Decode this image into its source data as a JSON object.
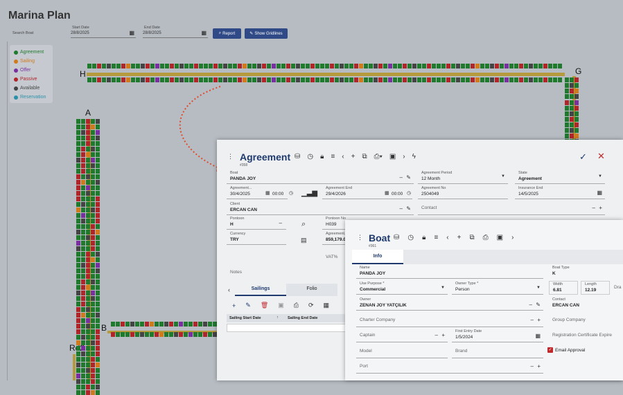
{
  "marina": {
    "title": "Marina Plan",
    "search_placeholder": "Search Boat",
    "start_label": "Start Date",
    "start_value": "28/8/2025",
    "end_label": "End Date",
    "end_value": "28/8/2025",
    "report_label": "Report",
    "gridlines_label": "Show Gridlines",
    "legend": [
      {
        "label": "Agreement",
        "color": "#1f7a2e"
      },
      {
        "label": "Sailing",
        "color": "#d07a1e"
      },
      {
        "label": "Offer",
        "color": "#7a2fa0"
      },
      {
        "label": "Passive",
        "color": "#b0252a"
      },
      {
        "label": "Available",
        "color": "#444444"
      },
      {
        "label": "Reservation",
        "color": "#2a8fa8"
      }
    ],
    "piers": [
      "H",
      "G",
      "A",
      "B",
      "Rd2"
    ]
  },
  "agreement": {
    "title": "Agreement",
    "id": "#358",
    "boat_label": "Boat",
    "boat_value": "PANDA JOY",
    "period_label": "Agreement Period",
    "period_value": "12 Month",
    "state_label": "State",
    "state_value": "Agreement",
    "start_label": "Agreement...",
    "start_value": "30/4/2025",
    "start_time": "00:00",
    "end_label": "Agreement End",
    "end_value": "29/4/2026",
    "end_time": "00:00",
    "no_label": "Agreement No",
    "no_value": "2504049",
    "ins_label": "Insurance End",
    "ins_value": "14/5/2025",
    "client_label": "Client",
    "client_value": "ERCAN CAN",
    "contact_label": "Contact",
    "pontoon_label": "Pontoon",
    "pontoon_value": "H",
    "pontoon_no_label": "Pontoon No",
    "pontoon_no_value": "H039",
    "currency_label": "Currency",
    "currency_value": "TRY",
    "amount_label": "Agreement...",
    "amount_value": "859,179.0",
    "vat_label": "VAT%",
    "notes_label": "Notes",
    "tab_sailings": "Sailings",
    "tab_folio": "Folio",
    "col_start": "Sailing Start Date",
    "col_end": "Sailing End Date"
  },
  "boat": {
    "title": "Boat",
    "id": "#361",
    "tab_info": "Info",
    "name_label": "Name",
    "name_value": "PANDA JOY",
    "type_label": "Boat Type",
    "type_value": "K",
    "use_label": "Use Purpose *",
    "use_value": "Commercial",
    "owner_type_label": "Owner Type *",
    "owner_type_value": "Person",
    "width_label": "Width",
    "width_value": "6.81",
    "length_label": "Length",
    "length_value": "12.19",
    "draft_label": "Dra",
    "owner_label": "Owner",
    "owner_value": "ZENAN JOY YATÇILIK",
    "contact_label": "Contact",
    "contact_value": "ERCAN CAN",
    "charter_placeholder": "Charter Company",
    "group_placeholder": "Group Company",
    "captain_placeholder": "Captain",
    "entry_label": "First Entry Date",
    "entry_value": "1/5/2024",
    "reg_placeholder": "Registration Certificate Expire",
    "model_placeholder": "Model",
    "brand_placeholder": "Brand",
    "email_label": "Email Approval",
    "port_placeholder": "Port"
  }
}
